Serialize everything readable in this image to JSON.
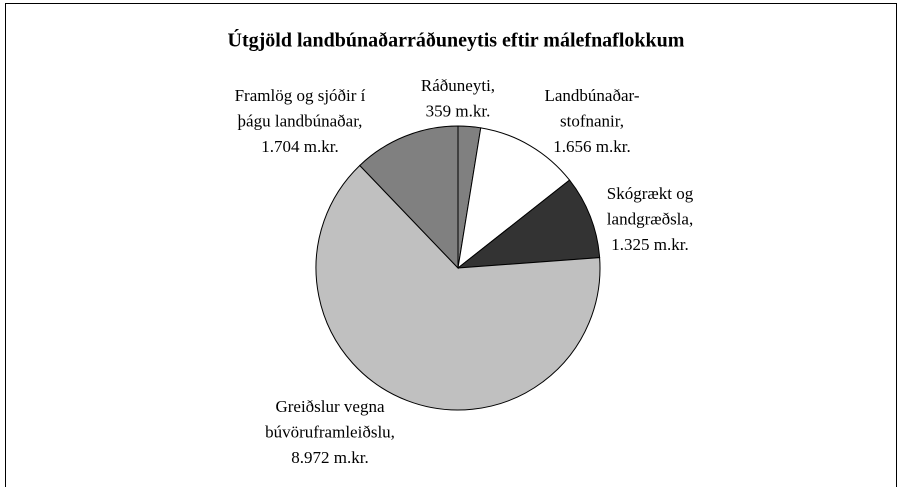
{
  "chart_data": {
    "type": "pie",
    "title": "Útgjöld landbúnaðarráðuneytis eftir málefnaflokkum",
    "categories": [
      [
        "Ráðuneyti,"
      ],
      [
        "Landbúnaðar-",
        "stofnanir,"
      ],
      [
        "Skógrækt og",
        "landgræðsla,"
      ],
      [
        "Greiðslur vegna",
        "búvöruframleiðslu,"
      ],
      [
        "Framlög og sjóðir í",
        "þágu landbúnaðar,"
      ]
    ],
    "values": [
      359,
      1656,
      1325,
      8972,
      1704
    ],
    "value_labels": [
      "359 m.kr.",
      "1.656 m.kr.",
      "1.325 m.kr.",
      "8.972 m.kr.",
      "1.704 m.kr."
    ],
    "colors": [
      "#808080",
      "#ffffff",
      "#333333",
      "#c0c0c0",
      "#808080"
    ]
  }
}
